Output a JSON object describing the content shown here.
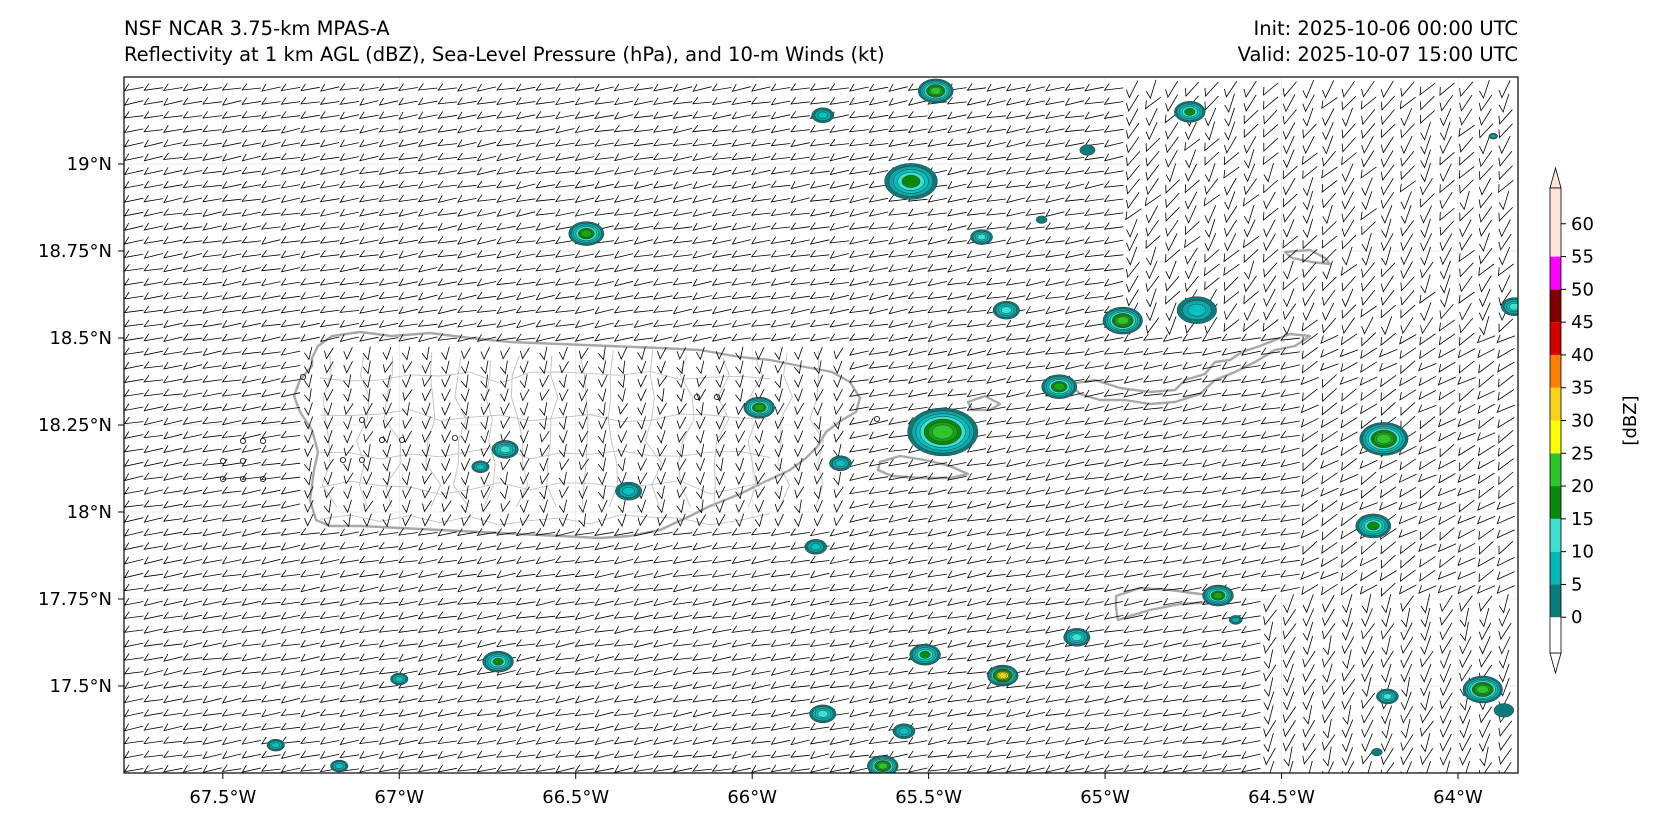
{
  "header": {
    "model_line": "NSF NCAR 3.75-km MPAS-A",
    "field_line": "Reflectivity at 1 km AGL (dBZ), Sea-Level Pressure (hPa), and 10-m Winds (kt)",
    "init_line": "Init: 2025-10-06 00:00 UTC",
    "valid_line": "Valid: 2025-10-07 15:00 UTC"
  },
  "map": {
    "lon_range": [
      -67.78,
      -63.83
    ],
    "lat_range": [
      17.25,
      19.25
    ],
    "lat_ticks": [
      {
        "value": 19.0,
        "label": "19°N"
      },
      {
        "value": 18.75,
        "label": "18.75°N"
      },
      {
        "value": 18.5,
        "label": "18.5°N"
      },
      {
        "value": 18.25,
        "label": "18.25°N"
      },
      {
        "value": 18.0,
        "label": "18°N"
      },
      {
        "value": 17.75,
        "label": "17.75°N"
      },
      {
        "value": 17.5,
        "label": "17.5°N"
      }
    ],
    "lon_ticks": [
      {
        "value": -67.5,
        "label": "67.5°W"
      },
      {
        "value": -67.0,
        "label": "67°W"
      },
      {
        "value": -66.5,
        "label": "66.5°W"
      },
      {
        "value": -66.0,
        "label": "66°W"
      },
      {
        "value": -65.5,
        "label": "65.5°W"
      },
      {
        "value": -65.0,
        "label": "65°W"
      },
      {
        "value": -64.5,
        "label": "64.5°W"
      },
      {
        "value": -64.0,
        "label": "64°W"
      }
    ],
    "cells": [
      {
        "lon": -65.46,
        "lat": 18.23,
        "dbz": 33,
        "size": 1.6
      },
      {
        "lon": -65.55,
        "lat": 18.95,
        "dbz": 22,
        "size": 1.2
      },
      {
        "lon": -65.48,
        "lat": 19.21,
        "dbz": 30,
        "size": 0.8
      },
      {
        "lon": -66.47,
        "lat": 18.8,
        "dbz": 26,
        "size": 0.8
      },
      {
        "lon": -64.95,
        "lat": 18.55,
        "dbz": 30,
        "size": 0.9
      },
      {
        "lon": -65.13,
        "lat": 18.36,
        "dbz": 28,
        "size": 0.8
      },
      {
        "lon": -64.76,
        "lat": 19.15,
        "dbz": 22,
        "size": 0.7
      },
      {
        "lon": -64.21,
        "lat": 18.21,
        "dbz": 30,
        "size": 1.1
      },
      {
        "lon": -64.24,
        "lat": 17.96,
        "dbz": 22,
        "size": 0.8
      },
      {
        "lon": -63.93,
        "lat": 17.49,
        "dbz": 30,
        "size": 0.9
      },
      {
        "lon": -65.29,
        "lat": 17.53,
        "dbz": 40,
        "size": 0.7
      },
      {
        "lon": -65.51,
        "lat": 17.59,
        "dbz": 22,
        "size": 0.7
      },
      {
        "lon": -64.68,
        "lat": 17.76,
        "dbz": 28,
        "size": 0.7
      },
      {
        "lon": -66.72,
        "lat": 17.57,
        "dbz": 20,
        "size": 0.7
      },
      {
        "lon": -65.98,
        "lat": 18.3,
        "dbz": 25,
        "size": 0.7
      },
      {
        "lon": -66.7,
        "lat": 18.18,
        "dbz": 18,
        "size": 0.6
      },
      {
        "lon": -65.8,
        "lat": 17.42,
        "dbz": 18,
        "size": 0.6
      },
      {
        "lon": -65.08,
        "lat": 17.64,
        "dbz": 18,
        "size": 0.6
      },
      {
        "lon": -65.63,
        "lat": 17.27,
        "dbz": 30,
        "size": 0.7
      },
      {
        "lon": -63.84,
        "lat": 18.59,
        "dbz": 18,
        "size": 0.6
      },
      {
        "lon": -64.74,
        "lat": 18.58,
        "dbz": 10,
        "size": 0.9
      },
      {
        "lon": -65.28,
        "lat": 18.58,
        "dbz": 18,
        "size": 0.6
      },
      {
        "lon": -65.35,
        "lat": 18.79,
        "dbz": 18,
        "size": 0.5
      },
      {
        "lon": -64.2,
        "lat": 17.47,
        "dbz": 18,
        "size": 0.5
      },
      {
        "lon": -66.35,
        "lat": 18.06,
        "dbz": 12,
        "size": 0.6
      },
      {
        "lon": -65.75,
        "lat": 18.14,
        "dbz": 12,
        "size": 0.5
      },
      {
        "lon": -65.82,
        "lat": 17.9,
        "dbz": 12,
        "size": 0.5
      },
      {
        "lon": -65.8,
        "lat": 19.14,
        "dbz": 12,
        "size": 0.5
      },
      {
        "lon": -65.57,
        "lat": 17.37,
        "dbz": 12,
        "size": 0.5
      },
      {
        "lon": -67.0,
        "lat": 17.52,
        "dbz": 10,
        "size": 0.4
      },
      {
        "lon": -66.77,
        "lat": 18.13,
        "dbz": 10,
        "size": 0.4
      },
      {
        "lon": -67.35,
        "lat": 17.33,
        "dbz": 10,
        "size": 0.4
      },
      {
        "lon": -67.17,
        "lat": 17.27,
        "dbz": 10,
        "size": 0.4
      },
      {
        "lon": -65.05,
        "lat": 19.04,
        "dbz": 2,
        "size": 0.35
      },
      {
        "lon": -63.87,
        "lat": 17.43,
        "dbz": 2,
        "size": 0.45
      },
      {
        "lon": -63.9,
        "lat": 19.08,
        "dbz": 5,
        "size": 0.2
      },
      {
        "lon": -65.18,
        "lat": 18.84,
        "dbz": 2,
        "size": 0.25
      },
      {
        "lon": -64.63,
        "lat": 17.69,
        "dbz": 8,
        "size": 0.3
      },
      {
        "lon": -64.23,
        "lat": 17.31,
        "dbz": 2,
        "size": 0.25
      }
    ]
  },
  "colorbar": {
    "label": "[dBZ]",
    "levels": [
      0,
      5,
      10,
      15,
      20,
      25,
      30,
      35,
      40,
      45,
      50,
      55,
      60
    ],
    "tick_labels": [
      "0",
      "5",
      "10",
      "15",
      "20",
      "25",
      "30",
      "35",
      "40",
      "45",
      "50",
      "55",
      "60"
    ],
    "colors": [
      "#0a7a7a",
      "#12a7a7",
      "#00c3c3",
      "#40e0d0",
      "#0a8a0a",
      "#16a516",
      "#2dc42d",
      "#ffff00",
      "#ffd21a",
      "#ffa500",
      "#ff8000",
      "#d40000",
      "#aa0000",
      "#800000",
      "#ff00ff",
      "#ffe4d8"
    ],
    "under_color": "#ffffff",
    "over_color": "#ffe4d8"
  }
}
